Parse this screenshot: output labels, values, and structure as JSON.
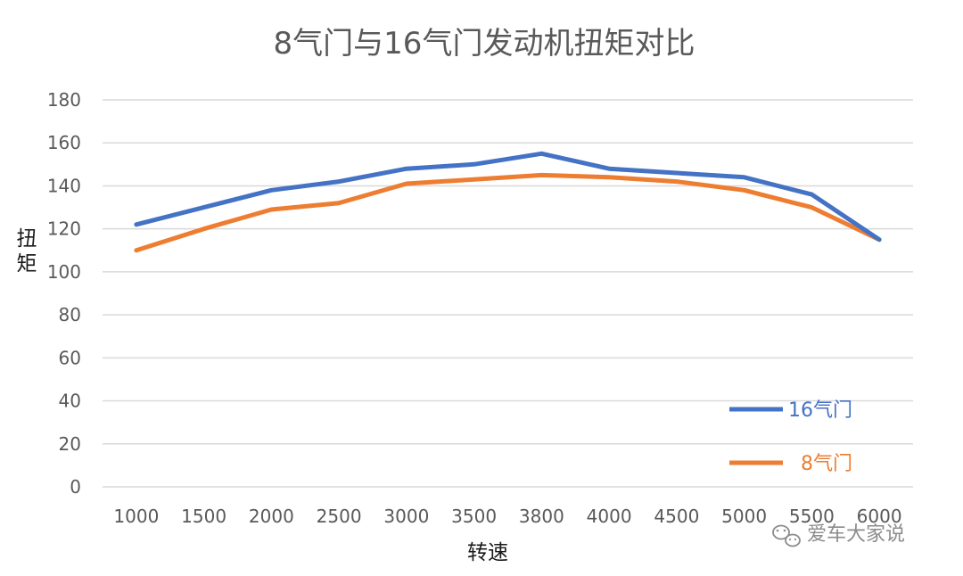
{
  "chart_data": {
    "type": "line",
    "title": "8气门与16气门发动机扭矩对比",
    "xlabel": "转速",
    "ylabel": "扭矩",
    "categories": [
      "1000",
      "1500",
      "2000",
      "2500",
      "3000",
      "3500",
      "3800",
      "4000",
      "4500",
      "5000",
      "5500",
      "6000"
    ],
    "ylim": [
      0,
      180
    ],
    "yticks": [
      0,
      20,
      40,
      60,
      80,
      100,
      120,
      140,
      160,
      180
    ],
    "grid": true,
    "legend_position": "bottom-right",
    "series": [
      {
        "name": "16气门",
        "color": "#4472C4",
        "values": [
          122,
          130,
          138,
          142,
          148,
          150,
          155,
          148,
          146,
          144,
          136,
          115
        ]
      },
      {
        "name": "8气门",
        "color": "#ED7D31",
        "values": [
          110,
          120,
          129,
          132,
          141,
          143,
          145,
          144,
          142,
          138,
          130,
          115
        ]
      }
    ]
  },
  "watermark": {
    "text": "爱车大家说",
    "icon": "wechat-icon"
  }
}
